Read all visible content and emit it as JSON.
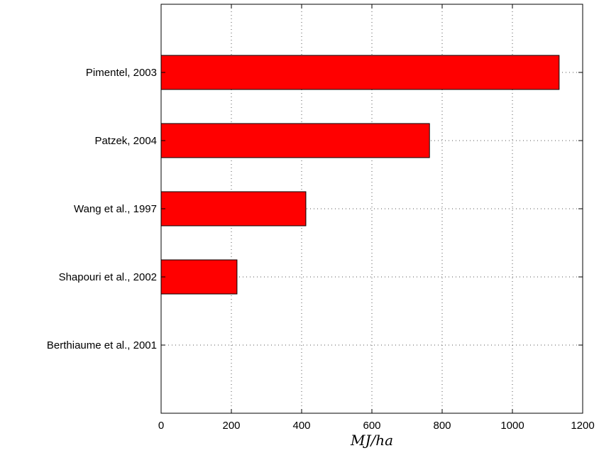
{
  "chart_data": {
    "type": "bar",
    "orientation": "horizontal",
    "categories": [
      "Pimentel, 2003",
      "Patzek, 2004",
      "Wang et al., 1997",
      "Shapouri et al., 2002",
      "Berthiaume et al., 2001"
    ],
    "values": [
      1133,
      764,
      412,
      216,
      0
    ],
    "xlabel": "MJ/ha",
    "xlim": [
      0,
      1200
    ],
    "xticks": [
      0,
      200,
      400,
      600,
      800,
      1000,
      1200
    ],
    "grid": true,
    "bar_color": "#ff0000"
  }
}
